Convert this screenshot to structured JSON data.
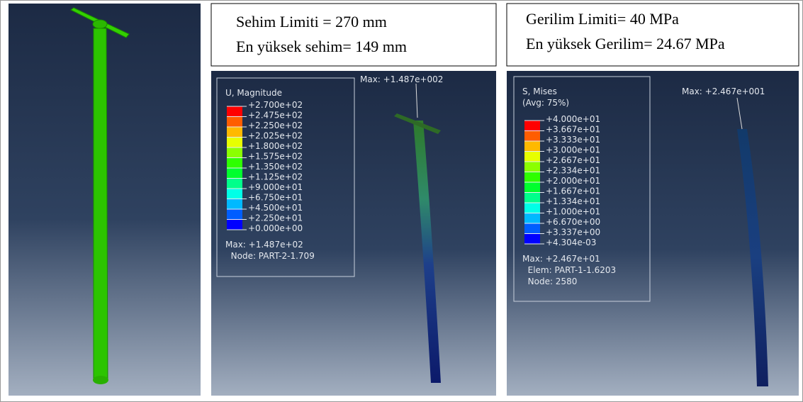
{
  "left_view": {},
  "middle": {
    "header": [
      "Sehim Limiti = 270 mm",
      "En yüksek sehim= 149 mm"
    ],
    "probe": "Max: +1.487e+002",
    "legend": {
      "title": [
        "U, Magnitude"
      ],
      "levels": [
        "+2.700e+02",
        "+2.475e+02",
        "+2.250e+02",
        "+2.025e+02",
        "+1.800e+02",
        "+1.575e+02",
        "+1.350e+02",
        "+1.125e+02",
        "+9.000e+01",
        "+6.750e+01",
        "+4.500e+01",
        "+2.250e+01",
        "+0.000e+00"
      ],
      "info": [
        "Max: +1.487e+02",
        "  Node: PART-2-1.709"
      ]
    }
  },
  "right": {
    "header": [
      "Gerilim Limiti= 40 MPa",
      "En yüksek Gerilim= 24.67 MPa"
    ],
    "probe": "Max: +2.467e+001",
    "legend": {
      "title": [
        "S, Mises",
        "(Avg: 75%)"
      ],
      "levels": [
        "+4.000e+01",
        "+3.667e+01",
        "+3.333e+01",
        "+3.000e+01",
        "+2.667e+01",
        "+2.334e+01",
        "+2.000e+01",
        "+1.667e+01",
        "+1.334e+01",
        "+1.000e+01",
        "+6.670e+00",
        "+3.337e+00",
        "+4.304e-03"
      ],
      "info": [
        "Max: +2.467e+01",
        "  Elem: PART-1-1.6203",
        "  Node: 2580"
      ]
    }
  },
  "spectrum": [
    "#ff0000",
    "#ff5d00",
    "#ffb900",
    "#e7ff00",
    "#8bff00",
    "#2eff00",
    "#00ff2e",
    "#00ff8b",
    "#00ffe7",
    "#00b9ff",
    "#005dff",
    "#0000ff"
  ]
}
